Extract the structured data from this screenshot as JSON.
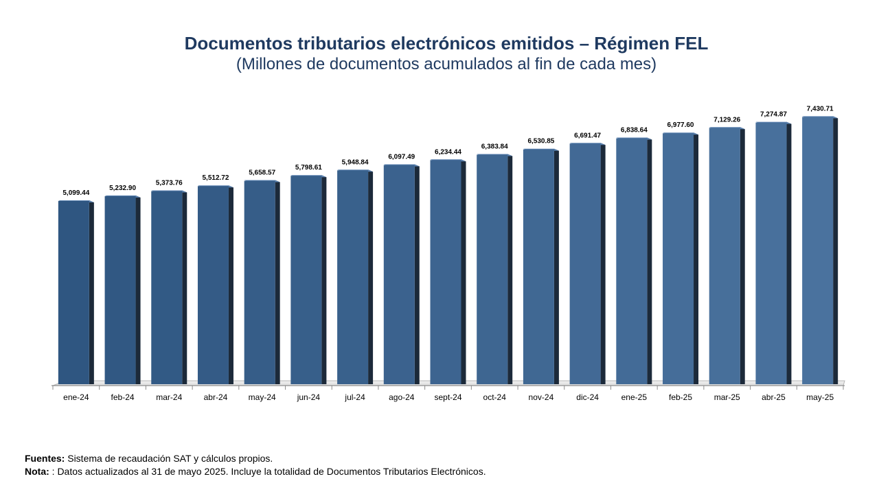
{
  "chart_data": {
    "type": "bar",
    "title": "Documentos tributarios electrónicos emitidos – Régimen FEL",
    "subtitle": "(Millones de documentos acumulados al fin de cada mes)",
    "categories": [
      "ene-24",
      "feb-24",
      "mar-24",
      "abr-24",
      "may-24",
      "jun-24",
      "jul-24",
      "ago-24",
      "sept-24",
      "oct-24",
      "nov-24",
      "dic-24",
      "ene-25",
      "feb-25",
      "mar-25",
      "abr-25",
      "may-25"
    ],
    "values": [
      5099.44,
      5232.9,
      5373.76,
      5512.72,
      5658.57,
      5798.61,
      5948.84,
      6097.49,
      6234.44,
      6383.84,
      6530.85,
      6691.47,
      6838.64,
      6977.6,
      7129.26,
      7274.87,
      7430.71
    ],
    "value_labels": [
      "5,099.44",
      "5,232.90",
      "5,373.76",
      "5,512.72",
      "5,658.57",
      "5,798.61",
      "5,948.84",
      "6,097.49",
      "6,234.44",
      "6,383.84",
      "6,530.85",
      "6,691.47",
      "6,838.64",
      "6,977.60",
      "7,129.26",
      "7,274.87",
      "7,430.71"
    ],
    "ylim": [
      0,
      7800
    ],
    "grid": false,
    "legend": "none",
    "bar_color_start": "#2F5681",
    "bar_color_end": "#4A729E"
  },
  "footer": {
    "sources_label": "Fuentes:",
    "sources_text": " Sistema de recaudación SAT y cálculos propios.",
    "note_label": "Nota:",
    "note_text": " : Datos actualizados al  31 de mayo 2025.  Incluye la totalidad de Documentos Tributarios Electrónicos."
  }
}
